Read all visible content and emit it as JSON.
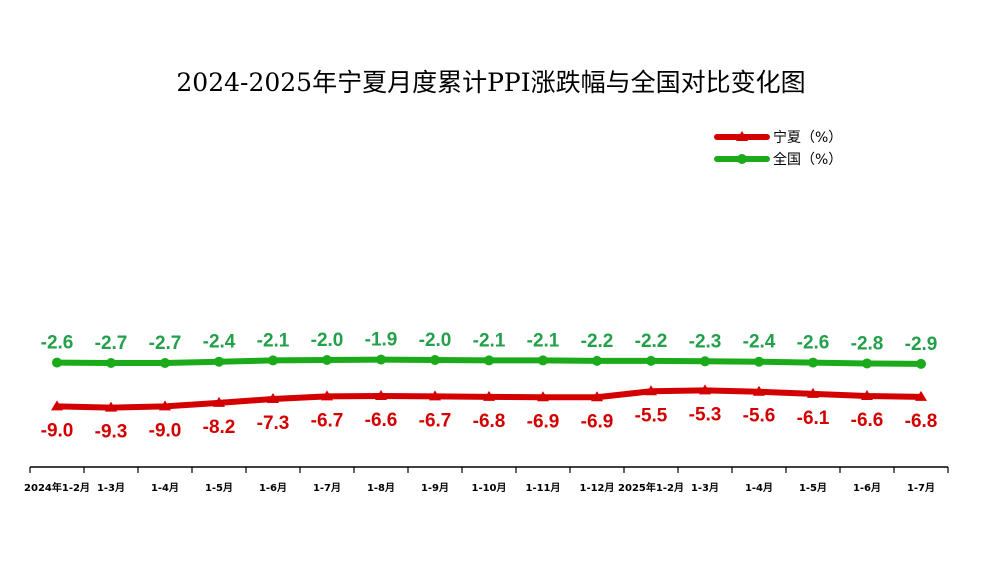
{
  "chart_data": {
    "type": "line",
    "title": "2024-2025年宁夏月度累计PPI涨跌幅与全国对比变化图",
    "xlabel": "",
    "ylabel": "",
    "categories": [
      "2024年1-2月",
      "1-3月",
      "1-4月",
      "1-5月",
      "1-6月",
      "1-7月",
      "1-8月",
      "1-9月",
      "1-10月",
      "1-11月",
      "1-12月",
      "2025年1-2月",
      "1-3月",
      "1-4月",
      "1-5月",
      "1-6月",
      "1-7月"
    ],
    "series": [
      {
        "name": "宁夏（%）",
        "color": "#d40000",
        "marker": "triangle",
        "values": [
          -9.0,
          -9.3,
          -9.0,
          -8.2,
          -7.3,
          -6.7,
          -6.6,
          -6.7,
          -6.8,
          -6.9,
          -6.9,
          -5.5,
          -5.3,
          -5.6,
          -6.1,
          -6.6,
          -6.8
        ],
        "labels": [
          "-9.0",
          "-9.3",
          "-9.0",
          "-8.2",
          "-7.3",
          "-6.7",
          "-6.6",
          "-6.7",
          "-6.8",
          "-6.9",
          "-6.9",
          "-5.5",
          "-5.3",
          "-5.6",
          "-6.1",
          "-6.6",
          "-6.8"
        ],
        "label_position": "below"
      },
      {
        "name": "全国（%）",
        "color": "#1aaa1a",
        "marker": "circle",
        "values": [
          -2.6,
          -2.7,
          -2.7,
          -2.4,
          -2.1,
          -2.0,
          -1.9,
          -2.0,
          -2.1,
          -2.1,
          -2.2,
          -2.2,
          -2.3,
          -2.4,
          -2.6,
          -2.8,
          -2.9
        ],
        "labels": [
          "-2.6",
          "-2.7",
          "-2.7",
          "-2.4",
          "-2.1",
          "-2.0",
          "-1.9",
          "-2.0",
          "-2.1",
          "-2.1",
          "-2.2",
          "-2.2",
          "-2.3",
          "-2.4",
          "-2.6",
          "-2.8",
          "-2.9"
        ],
        "label_position": "above",
        "label_color": "#22a04a"
      }
    ],
    "legend": {
      "position": "top-right"
    },
    "grid": false
  }
}
